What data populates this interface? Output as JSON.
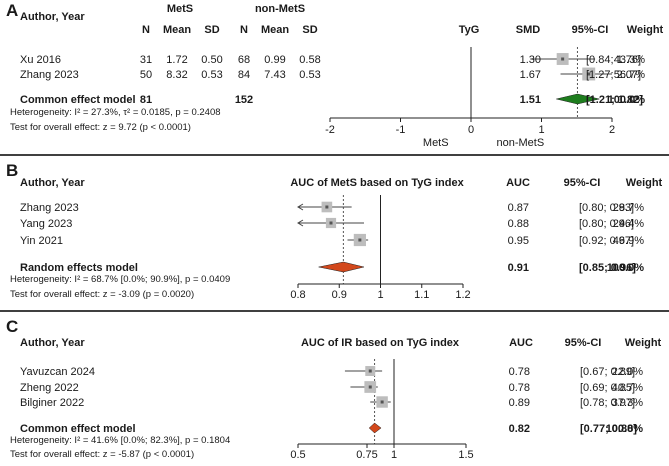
{
  "chart_data": [
    {
      "type": "forest",
      "panel_label": "A",
      "plot_title": "TyG",
      "headers": {
        "study": "Author, Year",
        "group1": "MetS",
        "group2": "non-MetS",
        "n1": "N",
        "mean1": "Mean",
        "sd1": "SD",
        "n2": "N",
        "mean2": "Mean",
        "sd2": "SD",
        "effect": "SMD",
        "ci": "95%-CI",
        "weight": "Weight"
      },
      "studies": [
        {
          "name": "Xu 2016",
          "n1": "31",
          "mean1": "1.72",
          "sd1": "0.50",
          "n2": "68",
          "mean2": "0.99",
          "sd2": "0.58",
          "est": 1.3,
          "lo": 0.84,
          "hi": 1.76,
          "est_label": "1.30",
          "ci_label": "[0.84; 1.76]",
          "weight_label": "43.3%",
          "weight": 43.3
        },
        {
          "name": "Zhang 2023",
          "n1": "50",
          "mean1": "8.32",
          "sd1": "0.53",
          "n2": "84",
          "mean2": "7.43",
          "sd2": "0.53",
          "est": 1.67,
          "lo": 1.27,
          "hi": 2.07,
          "est_label": "1.67",
          "ci_label": "[1.27; 2.07]",
          "weight_label": "56.7%",
          "weight": 56.7
        }
      ],
      "pooled": {
        "name": "Common effect model",
        "n1": "81",
        "n2": "152",
        "est": 1.51,
        "lo": 1.21,
        "hi": 1.82,
        "est_label": "1.51",
        "ci_label": "[1.21; 1.82]",
        "weight_label": "100.0%",
        "color": "#1e7d1e"
      },
      "heterogeneity": "Heterogeneity: I² = 27.3%, τ² = 0.0185, p = 0.2408",
      "overall_test": "Test for overall effect: z = 9.72 (p < 0.0001)",
      "axis": {
        "min": -2,
        "max": 2,
        "ticks": [
          -2,
          -1,
          0,
          1,
          2
        ],
        "tick_labels": [
          "-2",
          "-1",
          "0",
          "1",
          "2"
        ],
        "null_value": 0,
        "left_label": "MetS",
        "right_label": "non-MetS"
      }
    },
    {
      "type": "forest",
      "panel_label": "B",
      "plot_title": "AUC of MetS based on TyG index",
      "headers": {
        "study": "Author, Year",
        "effect": "AUC",
        "ci": "95%-CI",
        "weight": "Weight"
      },
      "studies": [
        {
          "name": "Zhang 2023",
          "est": 0.87,
          "lo": 0.8,
          "hi": 0.93,
          "est_label": "0.87",
          "ci_label": "[0.80; 0.93]",
          "weight_label": "28.7%",
          "weight": 28.7,
          "arrow_left": true
        },
        {
          "name": "Yang 2023",
          "est": 0.88,
          "lo": 0.8,
          "hi": 0.96,
          "est_label": "0.88",
          "ci_label": "[0.80; 0.96]",
          "weight_label": "24.4%",
          "weight": 24.4,
          "arrow_left": true
        },
        {
          "name": "Yin 2021",
          "est": 0.95,
          "lo": 0.92,
          "hi": 0.97,
          "est_label": "0.95",
          "ci_label": "[0.92; 0.97]",
          "weight_label": "46.9%",
          "weight": 46.9
        }
      ],
      "pooled": {
        "name": "Random effects model",
        "est": 0.91,
        "lo": 0.85,
        "hi": 0.96,
        "est_label": "0.91",
        "ci_label": "[0.85; 0.96]",
        "weight_label": "100.0%",
        "color": "#d2481c"
      },
      "heterogeneity": "Heterogeneity: I² = 68.7% [0.0%; 90.9%], p = 0.0409",
      "overall_test": "Test for overall effect: z = -3.09 (p = 0.0020)",
      "axis": {
        "min": 0.8,
        "max": 1.2,
        "ticks": [
          0.8,
          0.9,
          1.0,
          1.1,
          1.2
        ],
        "tick_labels": [
          "0.8",
          "0.9",
          "1",
          "1.1",
          "1.2"
        ],
        "null_value": 1.0
      }
    },
    {
      "type": "forest",
      "panel_label": "C",
      "plot_title": "AUC of IR based on TyG index",
      "headers": {
        "study": "Author, Year",
        "effect": "AUC",
        "ci": "95%-CI",
        "weight": "Weight"
      },
      "studies": [
        {
          "name": "Yavuzcan 2024",
          "est": 0.78,
          "lo": 0.67,
          "hi": 0.89,
          "est_label": "0.78",
          "ci_label": "[0.67; 0.89]",
          "weight_label": "22.0%",
          "weight": 22.0
        },
        {
          "name": "Zheng 2022",
          "est": 0.78,
          "lo": 0.69,
          "hi": 0.85,
          "est_label": "0.78",
          "ci_label": "[0.69; 0.85]",
          "weight_label": "40.7%",
          "weight": 40.7
        },
        {
          "name": "Bilginer 2022",
          "est": 0.89,
          "lo": 0.78,
          "hi": 0.97,
          "est_label": "0.89",
          "ci_label": "[0.78; 0.97]",
          "weight_label": "37.3%",
          "weight": 37.3
        }
      ],
      "pooled": {
        "name": "Common effect model",
        "est": 0.82,
        "lo": 0.77,
        "hi": 0.88,
        "est_label": "0.82",
        "ci_label": "[0.77; 0.88]",
        "weight_label": "100.0%",
        "color": "#d2481c"
      },
      "heterogeneity": "Heterogeneity: I² = 41.6% [0.0%; 82.3%], p = 0.1804",
      "overall_test": "Test for overall effect: z = -5.87 (p < 0.0001)",
      "axis": {
        "min": 0.5,
        "max": 1.5,
        "ticks": [
          0.5,
          0.75,
          1.0,
          1.5
        ],
        "tick_labels": [
          "0.5",
          "0.75",
          "1",
          "1.5"
        ],
        "null_value": 1.0
      }
    }
  ]
}
